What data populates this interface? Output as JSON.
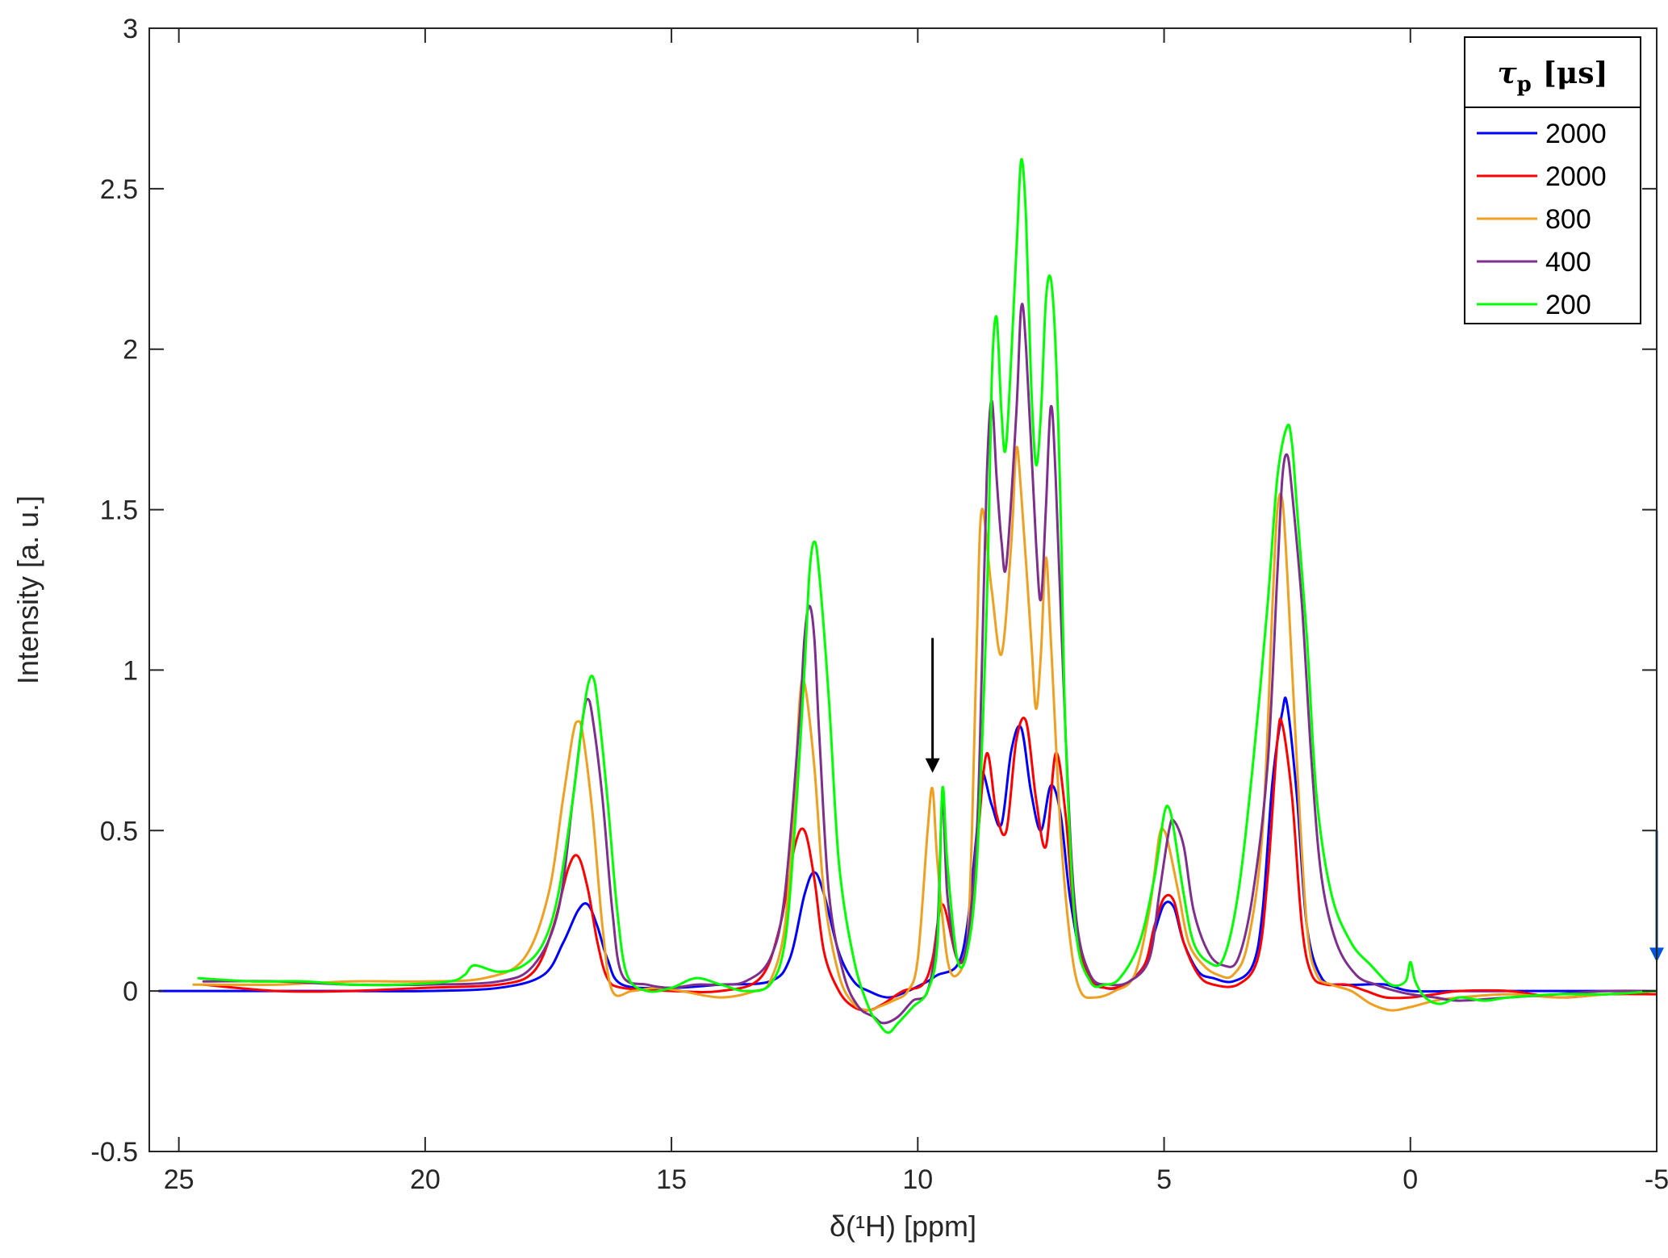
{
  "chart_data": {
    "type": "line",
    "xlabel": "δ(¹H) [ppm]",
    "ylabel": "Intensity [a. u.]",
    "xlim": [
      25.6,
      -5.0
    ],
    "ylim": [
      -0.5,
      3.0
    ],
    "x_reversed": true,
    "xticks": [
      25,
      20,
      15,
      10,
      5,
      0,
      -5
    ],
    "yticks": [
      -0.5,
      0,
      0.5,
      1,
      1.5,
      2,
      2.5,
      3
    ],
    "xtick_labels": [
      "25",
      "20",
      "15",
      "10",
      "5",
      "0",
      "-5"
    ],
    "ytick_labels": [
      "-0.5",
      "0",
      "0.5",
      "1",
      "1.5",
      "2",
      "2.5",
      "3"
    ],
    "grid": false,
    "legend": {
      "title_main": "τ",
      "title_sub": "p",
      "title_unit": "[μs]",
      "position": "top-right"
    },
    "series": [
      {
        "name": "2000",
        "color": "#0000ff",
        "x": [
          25.4,
          24.5,
          23.0,
          21.5,
          20.0,
          18.5,
          17.6,
          17.2,
          16.9,
          16.7,
          16.5,
          16.3,
          16.0,
          15.0,
          14.0,
          13.0,
          12.6,
          12.3,
          12.1,
          11.9,
          11.6,
          11.3,
          11.0,
          10.6,
          10.2,
          9.8,
          9.6,
          9.2,
          9.0,
          8.8,
          8.7,
          8.5,
          8.3,
          8.1,
          7.9,
          7.7,
          7.5,
          7.3,
          7.1,
          6.9,
          6.6,
          6.2,
          5.8,
          5.4,
          5.2,
          5.0,
          4.8,
          4.6,
          4.3,
          4.0,
          3.6,
          3.2,
          3.0,
          2.8,
          2.6,
          2.5,
          2.3,
          2.1,
          1.8,
          1.4,
          1.0,
          0.5,
          0.0,
          -1.0,
          -2.0,
          -3.0,
          -4.0,
          -5.0,
          -5.6
        ],
        "y": [
          0.0,
          0.0,
          0.0,
          0.0,
          0.0,
          0.01,
          0.05,
          0.15,
          0.25,
          0.27,
          0.2,
          0.1,
          0.02,
          0.01,
          0.02,
          0.03,
          0.1,
          0.3,
          0.37,
          0.3,
          0.12,
          0.03,
          0.0,
          -0.02,
          0.0,
          0.03,
          0.05,
          0.08,
          0.2,
          0.5,
          0.68,
          0.58,
          0.52,
          0.75,
          0.82,
          0.62,
          0.5,
          0.64,
          0.55,
          0.28,
          0.06,
          0.01,
          0.02,
          0.08,
          0.18,
          0.27,
          0.26,
          0.15,
          0.06,
          0.04,
          0.03,
          0.08,
          0.25,
          0.65,
          0.87,
          0.89,
          0.6,
          0.2,
          0.04,
          0.02,
          0.02,
          0.02,
          0.0,
          0.0,
          0.0,
          0.0,
          0.0,
          0.0,
          0.01
        ]
      },
      {
        "name": "2000",
        "color": "#ff0000",
        "x": [
          24.5,
          23.0,
          21.5,
          20.0,
          18.5,
          17.8,
          17.4,
          17.1,
          16.9,
          16.7,
          16.5,
          16.3,
          16.0,
          15.0,
          14.0,
          13.2,
          12.8,
          12.5,
          12.3,
          12.1,
          11.9,
          11.6,
          11.3,
          11.0,
          10.7,
          10.3,
          9.9,
          9.7,
          9.5,
          9.2,
          9.0,
          8.8,
          8.6,
          8.4,
          8.2,
          8.0,
          7.8,
          7.6,
          7.4,
          7.2,
          7.0,
          6.8,
          6.5,
          6.2,
          5.8,
          5.4,
          5.2,
          5.0,
          4.8,
          4.6,
          4.3,
          4.0,
          3.5,
          3.1,
          2.9,
          2.7,
          2.6,
          2.4,
          2.2,
          2.0,
          1.7,
          1.3,
          0.9,
          0.5,
          0.0,
          -0.5,
          -1.0,
          -2.0,
          -3.0,
          -4.0,
          -5.0,
          -5.4
        ],
        "y": [
          0.02,
          0.0,
          0.0,
          0.01,
          0.02,
          0.06,
          0.2,
          0.38,
          0.42,
          0.32,
          0.15,
          0.04,
          0.01,
          0.0,
          0.0,
          0.04,
          0.2,
          0.45,
          0.5,
          0.35,
          0.12,
          0.0,
          -0.05,
          -0.06,
          -0.04,
          0.0,
          0.02,
          0.1,
          0.27,
          0.1,
          0.15,
          0.45,
          0.74,
          0.55,
          0.5,
          0.78,
          0.84,
          0.6,
          0.45,
          0.74,
          0.55,
          0.2,
          0.04,
          0.01,
          0.02,
          0.08,
          0.2,
          0.29,
          0.28,
          0.15,
          0.05,
          0.02,
          0.02,
          0.1,
          0.35,
          0.78,
          0.83,
          0.6,
          0.2,
          0.05,
          0.02,
          0.02,
          0.0,
          -0.02,
          -0.02,
          -0.01,
          0.0,
          0.0,
          -0.02,
          -0.01,
          -0.01,
          -0.01
        ]
      },
      {
        "name": "800",
        "color": "#f0a020",
        "x": [
          24.7,
          23.0,
          21.5,
          20.0,
          18.8,
          18.0,
          17.5,
          17.2,
          17.0,
          16.9,
          16.8,
          16.6,
          16.4,
          16.2,
          15.8,
          15.3,
          14.8,
          14.0,
          13.3,
          13.0,
          12.7,
          12.5,
          12.4,
          12.3,
          12.1,
          11.9,
          11.6,
          11.3,
          11.0,
          10.8,
          10.5,
          10.2,
          10.0,
          9.8,
          9.7,
          9.6,
          9.4,
          9.2,
          9.0,
          8.9,
          8.8,
          8.7,
          8.5,
          8.3,
          8.1,
          8.0,
          7.9,
          7.7,
          7.6,
          7.5,
          7.4,
          7.3,
          7.1,
          6.9,
          6.7,
          6.4,
          6.0,
          5.6,
          5.3,
          5.1,
          5.0,
          4.9,
          4.7,
          4.5,
          4.2,
          3.9,
          3.6,
          3.3,
          3.0,
          2.8,
          2.7,
          2.6,
          2.5,
          2.3,
          2.1,
          1.9,
          1.6,
          1.2,
          0.8,
          0.4,
          0.0,
          -0.5,
          -1.0,
          -2.0,
          -3.0,
          -4.0,
          -5.0,
          -5.5
        ],
        "y": [
          0.02,
          0.02,
          0.03,
          0.03,
          0.04,
          0.1,
          0.3,
          0.6,
          0.8,
          0.84,
          0.8,
          0.55,
          0.2,
          0.0,
          0.0,
          0.01,
          0.0,
          -0.02,
          0.0,
          0.03,
          0.2,
          0.6,
          0.9,
          0.96,
          0.7,
          0.3,
          0.05,
          -0.04,
          -0.06,
          -0.05,
          -0.03,
          0.0,
          0.1,
          0.5,
          0.63,
          0.4,
          0.1,
          0.05,
          0.15,
          0.5,
          1.1,
          1.5,
          1.25,
          1.05,
          1.4,
          1.69,
          1.55,
          1.1,
          0.88,
          1.05,
          1.35,
          1.1,
          0.5,
          0.15,
          0.0,
          -0.02,
          0.0,
          0.05,
          0.25,
          0.48,
          0.5,
          0.45,
          0.3,
          0.15,
          0.08,
          0.05,
          0.05,
          0.15,
          0.5,
          1.2,
          1.5,
          1.53,
          1.3,
          0.7,
          0.2,
          0.05,
          0.02,
          0.0,
          -0.04,
          -0.06,
          -0.05,
          -0.03,
          -0.02,
          -0.01,
          -0.02,
          -0.01,
          0.0,
          0.0
        ]
      },
      {
        "name": "400",
        "color": "#7e2f8e",
        "x": [
          24.5,
          23.0,
          21.5,
          20.0,
          18.5,
          17.8,
          17.3,
          17.0,
          16.8,
          16.7,
          16.6,
          16.4,
          16.2,
          16.0,
          15.5,
          15.0,
          14.5,
          14.0,
          13.5,
          13.0,
          12.7,
          12.4,
          12.3,
          12.2,
          12.1,
          12.0,
          11.8,
          11.5,
          11.2,
          10.9,
          10.7,
          10.4,
          10.1,
          9.8,
          9.6,
          9.5,
          9.4,
          9.2,
          9.0,
          8.8,
          8.7,
          8.6,
          8.5,
          8.4,
          8.3,
          8.2,
          8.0,
          7.9,
          7.8,
          7.6,
          7.5,
          7.4,
          7.3,
          7.2,
          7.0,
          6.8,
          6.5,
          6.1,
          5.7,
          5.3,
          5.1,
          4.9,
          4.8,
          4.6,
          4.4,
          4.1,
          3.8,
          3.5,
          3.2,
          2.9,
          2.7,
          2.6,
          2.5,
          2.4,
          2.2,
          2.0,
          1.8,
          1.5,
          1.1,
          0.7,
          0.3,
          0.0,
          -0.5,
          -1.0,
          -2.0,
          -3.0,
          -4.0,
          -5.0,
          -5.4
        ],
        "y": [
          0.03,
          0.03,
          0.02,
          0.02,
          0.03,
          0.08,
          0.25,
          0.6,
          0.85,
          0.91,
          0.85,
          0.6,
          0.25,
          0.05,
          0.02,
          0.01,
          0.02,
          0.02,
          0.03,
          0.1,
          0.3,
          0.85,
          1.1,
          1.2,
          1.1,
          0.8,
          0.3,
          0.05,
          -0.05,
          -0.08,
          -0.1,
          -0.08,
          -0.03,
          0.0,
          0.2,
          0.6,
          0.3,
          0.1,
          0.15,
          0.5,
          1.0,
          1.6,
          1.84,
          1.6,
          1.4,
          1.33,
          1.8,
          2.13,
          2.0,
          1.4,
          1.22,
          1.5,
          1.82,
          1.6,
          0.8,
          0.25,
          0.05,
          0.02,
          0.03,
          0.1,
          0.3,
          0.5,
          0.53,
          0.45,
          0.25,
          0.12,
          0.08,
          0.1,
          0.3,
          0.7,
          1.3,
          1.6,
          1.67,
          1.55,
          1.2,
          0.7,
          0.35,
          0.15,
          0.05,
          0.02,
          0.0,
          -0.01,
          -0.02,
          -0.03,
          -0.02,
          -0.01,
          0.0,
          0.0,
          0.0
        ]
      },
      {
        "name": "200",
        "color": "#00ff00",
        "x": [
          24.6,
          23.5,
          22.5,
          21.5,
          20.5,
          19.5,
          19.2,
          19.0,
          18.5,
          18.0,
          17.6,
          17.3,
          17.0,
          16.8,
          16.7,
          16.6,
          16.5,
          16.3,
          16.1,
          15.9,
          15.5,
          15.0,
          14.5,
          14.0,
          13.5,
          13.0,
          12.7,
          12.5,
          12.3,
          12.2,
          12.1,
          12.0,
          11.8,
          11.6,
          11.3,
          11.0,
          10.8,
          10.6,
          10.4,
          10.1,
          9.8,
          9.6,
          9.5,
          9.4,
          9.2,
          9.0,
          8.8,
          8.6,
          8.5,
          8.4,
          8.3,
          8.2,
          8.0,
          7.9,
          7.8,
          7.7,
          7.6,
          7.5,
          7.4,
          7.3,
          7.2,
          7.1,
          7.0,
          6.8,
          6.5,
          6.2,
          5.9,
          5.5,
          5.2,
          5.0,
          4.9,
          4.8,
          4.6,
          4.4,
          4.1,
          3.8,
          3.5,
          3.2,
          2.9,
          2.7,
          2.5,
          2.4,
          2.3,
          2.1,
          1.9,
          1.6,
          1.2,
          0.8,
          0.4,
          0.1,
          0.0,
          -0.1,
          -0.3,
          -0.6,
          -1.0,
          -1.5,
          -2.0,
          -3.0,
          -4.0,
          -5.0
        ],
        "y": [
          0.04,
          0.03,
          0.03,
          0.02,
          0.02,
          0.03,
          0.05,
          0.08,
          0.06,
          0.08,
          0.15,
          0.3,
          0.6,
          0.85,
          0.95,
          0.98,
          0.9,
          0.6,
          0.25,
          0.05,
          0.0,
          0.01,
          0.04,
          0.02,
          0.0,
          0.02,
          0.15,
          0.5,
          1.0,
          1.3,
          1.4,
          1.3,
          0.9,
          0.4,
          0.1,
          -0.05,
          -0.1,
          -0.13,
          -0.1,
          -0.05,
          0.0,
          0.15,
          0.63,
          0.4,
          0.1,
          0.12,
          0.4,
          1.2,
          1.9,
          2.1,
          1.8,
          1.71,
          2.3,
          2.59,
          2.4,
          1.9,
          1.64,
          1.8,
          2.15,
          2.22,
          2.0,
          1.5,
          0.8,
          0.2,
          0.03,
          0.02,
          0.04,
          0.15,
          0.35,
          0.55,
          0.57,
          0.5,
          0.3,
          0.15,
          0.09,
          0.1,
          0.3,
          0.7,
          1.2,
          1.6,
          1.76,
          1.7,
          1.5,
          1.1,
          0.6,
          0.3,
          0.15,
          0.08,
          0.02,
          0.03,
          0.09,
          0.03,
          -0.02,
          -0.04,
          -0.02,
          -0.03,
          -0.02,
          -0.01,
          -0.01,
          0.0
        ]
      }
    ],
    "annotations": [
      {
        "type": "arrow",
        "color": "#000000",
        "x": 9.7,
        "y_from": 1.1,
        "y_to": 0.68
      },
      {
        "type": "arrow",
        "color": "#0055dd",
        "x": -5.0,
        "y_from": 0.5,
        "y_to": 0.09
      }
    ]
  }
}
